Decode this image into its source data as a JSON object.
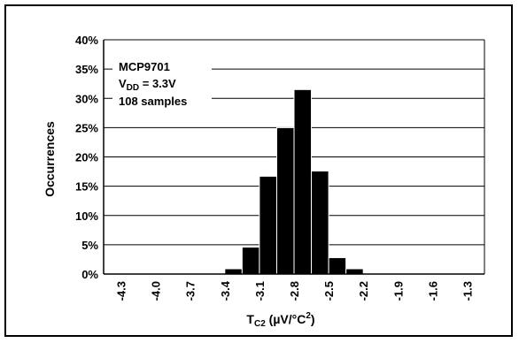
{
  "chart_data": {
    "type": "bar",
    "title": "",
    "xlabel": {
      "main": "T",
      "sub": "C2",
      "unit_prefix": " (µV/°C",
      "sup": "2",
      "unit_suffix": ")"
    },
    "ylabel": "Occurrences",
    "ylim": [
      0,
      40
    ],
    "y_ticks": [
      "0%",
      "5%",
      "10%",
      "15%",
      "20%",
      "25%",
      "30%",
      "35%",
      "40%"
    ],
    "x_ticks": [
      "-4.3",
      "-4.0",
      "-3.7",
      "-3.4",
      "-3.1",
      "-2.8",
      "-2.5",
      "-2.2",
      "-1.9",
      "-1.6",
      "-1.3"
    ],
    "grid": true,
    "bins": [
      {
        "from": -3.4,
        "to": -3.25,
        "value": 0.9
      },
      {
        "from": -3.25,
        "to": -3.1,
        "value": 4.6
      },
      {
        "from": -3.1,
        "to": -2.95,
        "value": 16.7
      },
      {
        "from": -2.95,
        "to": -2.8,
        "value": 25.0
      },
      {
        "from": -2.8,
        "to": -2.65,
        "value": 31.5
      },
      {
        "from": -2.65,
        "to": -2.5,
        "value": 17.6
      },
      {
        "from": -2.5,
        "to": -2.35,
        "value": 2.8
      },
      {
        "from": -2.35,
        "to": -2.2,
        "value": 0.9
      }
    ],
    "annotation": {
      "line1": "MCP9701",
      "line2_main": "V",
      "line2_sub": "DD",
      "line2_rest": " = 3.3V",
      "line3": "108 samples"
    }
  }
}
